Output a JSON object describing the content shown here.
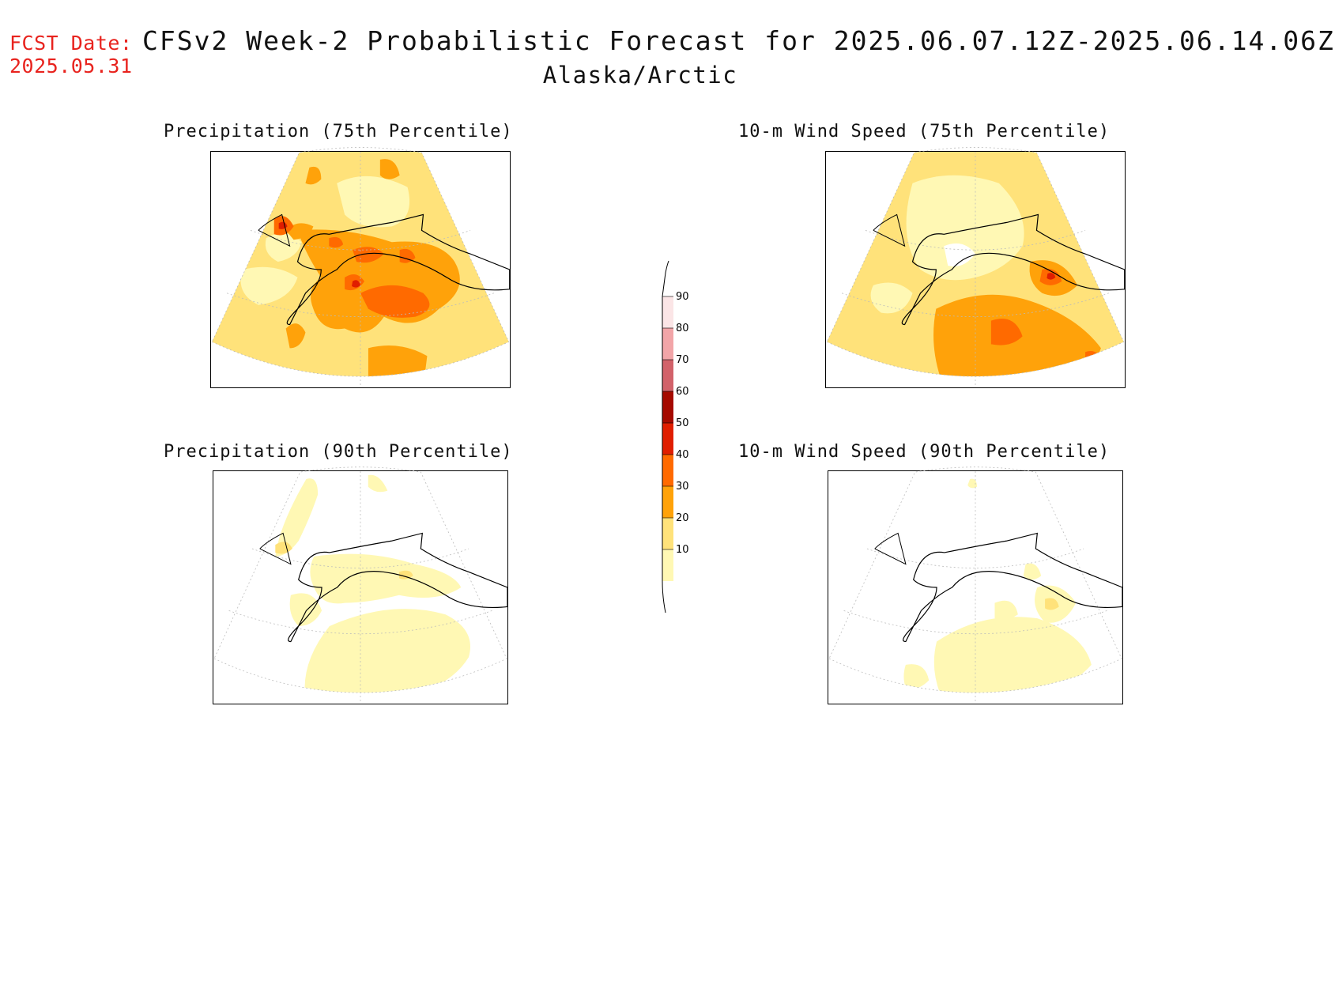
{
  "header": {
    "fcst_label": "FCST Date:",
    "fcst_date": "2025.05.31",
    "title": "CFSv2 Week-2 Probabilistic Forecast for 2025.06.07.12Z-2025.06.14.06Z",
    "subtitle": "Alaska/Arctic"
  },
  "panels": [
    {
      "id": "precip-75",
      "title": "Precipitation (75th Percentile)"
    },
    {
      "id": "wind-75",
      "title": "10-m Wind Speed (75th Percentile)"
    },
    {
      "id": "precip-90",
      "title": "Precipitation (90th Percentile)"
    },
    {
      "id": "wind-90",
      "title": "10-m Wind Speed (90th Percentile)"
    }
  ],
  "colorbar": {
    "levels": [
      {
        "label": "10",
        "color": "#fff8b4"
      },
      {
        "label": "20",
        "color": "#ffe27a"
      },
      {
        "label": "30",
        "color": "#ffa20a"
      },
      {
        "label": "40",
        "color": "#ff6a00"
      },
      {
        "label": "50",
        "color": "#e01e00"
      },
      {
        "label": "60",
        "color": "#a50a00"
      },
      {
        "label": "70",
        "color": "#d2626a"
      },
      {
        "label": "80",
        "color": "#f2a5a8"
      },
      {
        "label": "90",
        "color": "#fbe5e6"
      }
    ]
  }
}
